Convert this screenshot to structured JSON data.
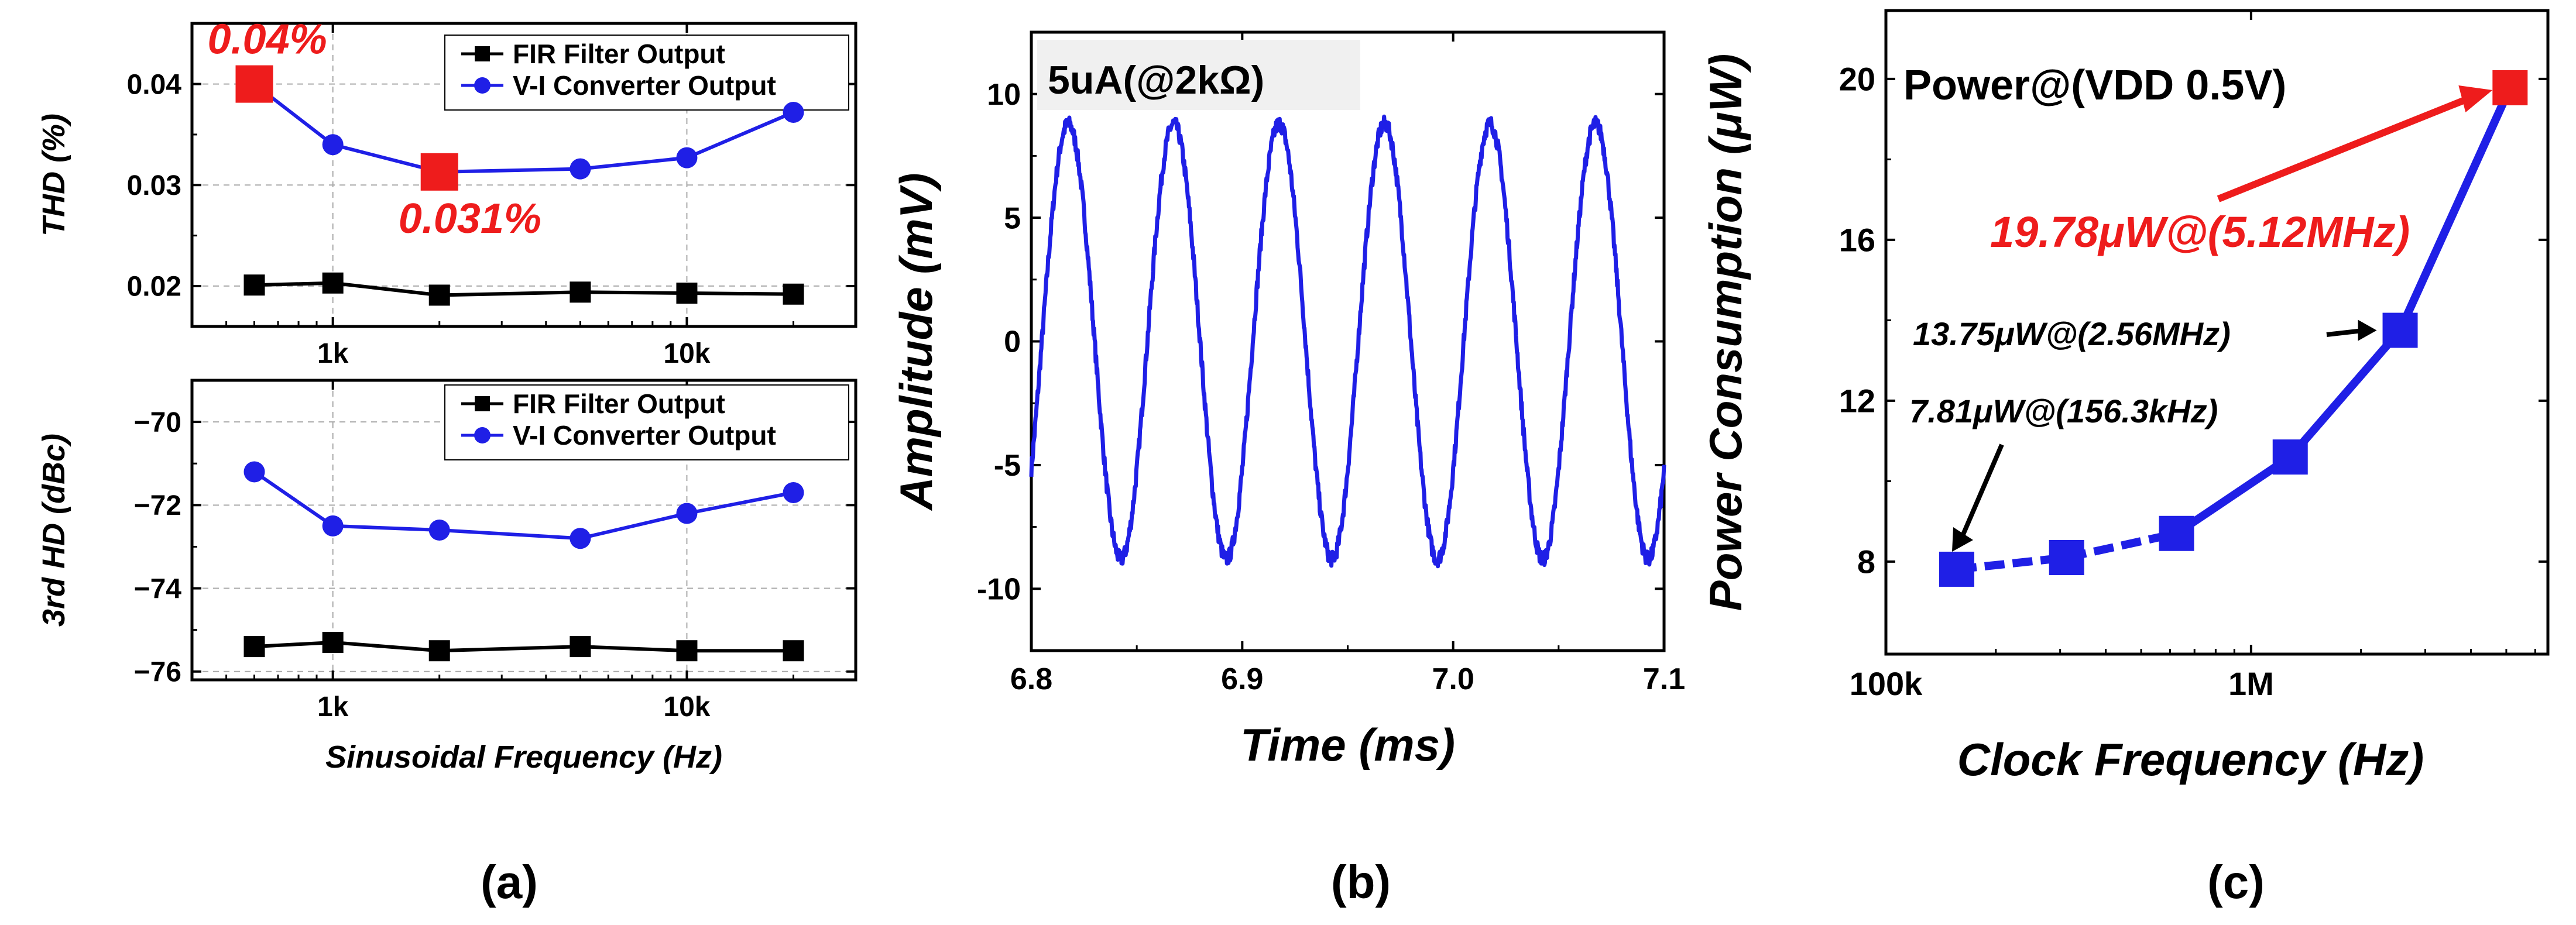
{
  "figure": {
    "panel_labels": [
      "(a)",
      "(b)",
      "(c)"
    ],
    "axis_color": "#000000",
    "grid_color": "#aaaaaa",
    "colors": {
      "fir": "#000000",
      "vi": "#1f1fe6",
      "highlight": "#ee1c1c",
      "wave": "#1f1fe6",
      "power": "#1f1fe6"
    }
  },
  "chart_data": [
    {
      "id": "a_top",
      "type": "line",
      "xscale": "log",
      "xlim": [
        400,
        30000
      ],
      "ylim": [
        0.016,
        0.046
      ],
      "xticks": [
        {
          "v": 1000,
          "label": "1k"
        },
        {
          "v": 10000,
          "label": "10k"
        }
      ],
      "yticks": [
        {
          "v": 0.02,
          "label": "0.02"
        },
        {
          "v": 0.03,
          "label": "0.03"
        },
        {
          "v": 0.04,
          "label": "0.04"
        }
      ],
      "ylabel": "THD (%)",
      "xlabel": "",
      "legend": [
        "FIR Filter Output",
        "V-I Converter Output"
      ],
      "x": [
        600,
        1000,
        2000,
        5000,
        10000,
        20000
      ],
      "series": [
        {
          "name": "FIR Filter Output",
          "marker": "square",
          "values": [
            0.0201,
            0.0203,
            0.0191,
            0.0194,
            0.0193,
            0.0192
          ]
        },
        {
          "name": "V-I Converter Output",
          "marker": "circle",
          "values": [
            0.04,
            0.034,
            0.0313,
            0.0316,
            0.0327,
            0.0372
          ]
        }
      ],
      "highlights": [
        {
          "x": 600,
          "y": 0.04,
          "label": "0.04%"
        },
        {
          "x": 2000,
          "y": 0.0313,
          "label": "0.031%"
        }
      ]
    },
    {
      "id": "a_bottom",
      "type": "line",
      "xscale": "log",
      "xlim": [
        400,
        30000
      ],
      "ylim": [
        -76.2,
        -69
      ],
      "xticks": [
        {
          "v": 1000,
          "label": "1k"
        },
        {
          "v": 10000,
          "label": "10k"
        }
      ],
      "yticks": [
        {
          "v": -76,
          "label": "−76"
        },
        {
          "v": -74,
          "label": "−74"
        },
        {
          "v": -72,
          "label": "−72"
        },
        {
          "v": -70,
          "label": "−70"
        }
      ],
      "ylabel": "3rd HD (dBc)",
      "xlabel": "Sinusoidal Frequency (Hz)",
      "legend": [
        "FIR Filter Output",
        "V-I Converter Output"
      ],
      "x": [
        600,
        1000,
        2000,
        5000,
        10000,
        20000
      ],
      "series": [
        {
          "name": "FIR Filter Output",
          "marker": "square",
          "values": [
            -75.4,
            -75.3,
            -75.5,
            -75.4,
            -75.5,
            -75.5
          ]
        },
        {
          "name": "V-I Converter Output",
          "marker": "circle",
          "values": [
            -71.2,
            -72.5,
            -72.6,
            -72.8,
            -72.2,
            -71.7
          ]
        }
      ]
    },
    {
      "id": "b",
      "type": "line",
      "title": "5uA(@2kΩ)",
      "xlabel": "Time (ms)",
      "ylabel": "Amplitude (mV)",
      "xlim": [
        6.8,
        7.1
      ],
      "ylim": [
        -12.5,
        12.5
      ],
      "xticks": [
        {
          "v": 6.8,
          "label": "6.8"
        },
        {
          "v": 6.9,
          "label": "6.9"
        },
        {
          "v": 7.0,
          "label": "7.0"
        },
        {
          "v": 7.1,
          "label": "7.1"
        }
      ],
      "yticks": [
        {
          "v": -10,
          "label": "-10"
        },
        {
          "v": -5,
          "label": "-5"
        },
        {
          "v": 0,
          "label": "0"
        },
        {
          "v": 5,
          "label": "5"
        },
        {
          "v": 10,
          "label": "10"
        }
      ],
      "signal": {
        "kind": "sine",
        "amplitude_mV": 8.8,
        "frequency_kHz": 20,
        "offset_mV": 0,
        "peak_time_ms": 6.8175
      }
    },
    {
      "id": "c",
      "type": "line",
      "xscale": "log",
      "title": "Power@(VDD 0.5V)",
      "xlabel": "Clock Frequency (Hz)",
      "ylabel": "Power Consumption (μW)",
      "xlim": [
        100000,
        6500000
      ],
      "ylim": [
        5.7,
        21.7
      ],
      "xticks": [
        {
          "v": 100000,
          "label": "100k"
        },
        {
          "v": 1000000,
          "label": "1M"
        }
      ],
      "yticks": [
        {
          "v": 8,
          "label": "8"
        },
        {
          "v": 12,
          "label": "12"
        },
        {
          "v": 16,
          "label": "16"
        },
        {
          "v": 20,
          "label": "20"
        }
      ],
      "x": [
        156300,
        312500,
        625000,
        1280000,
        2560000,
        5120000
      ],
      "series": [
        {
          "name": "Power",
          "marker": "square",
          "values": [
            7.81,
            8.1,
            8.7,
            10.6,
            13.75,
            19.78
          ]
        }
      ],
      "annotations": [
        {
          "label": "19.78μW@(5.12MHz)",
          "x": 5120000,
          "y": 19.78,
          "color": "red"
        },
        {
          "label": "13.75μW@(2.56MHz)",
          "x": 2560000,
          "y": 13.75,
          "color": "black"
        },
        {
          "label": "7.81μW@(156.3kHz)",
          "x": 156300,
          "y": 7.81,
          "color": "black"
        }
      ]
    }
  ]
}
